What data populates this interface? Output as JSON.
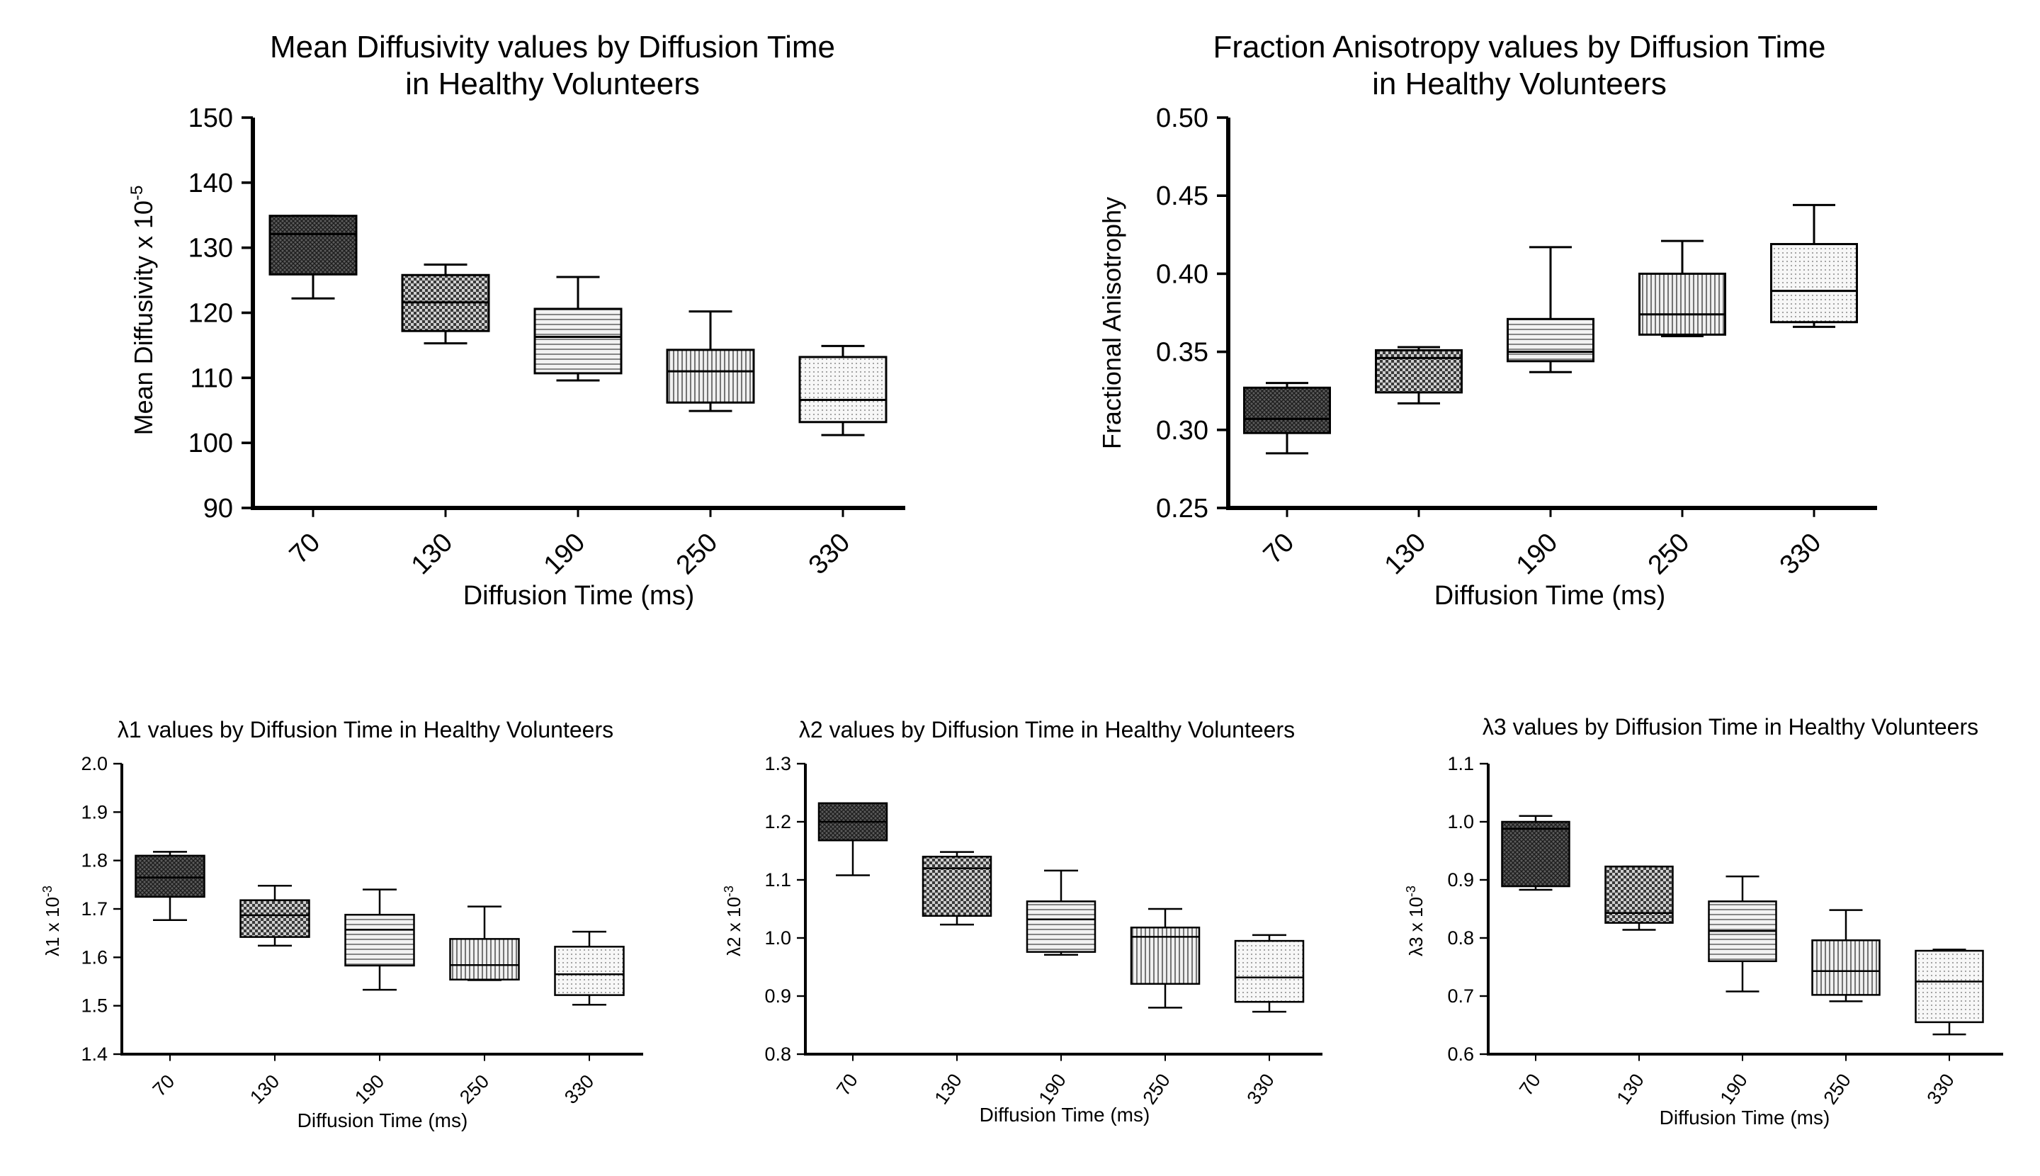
{
  "chart_data": [
    {
      "type": "box",
      "id": "md",
      "title_lines": [
        "Mean Diffusivity values by Diffusion Time",
        "in Healthy Volunteers"
      ],
      "ylabel": "Mean Diffusivity x 10",
      "ylabel_sup": "-5",
      "xlabel": "Diffusion Time (ms)",
      "ylim": [
        90,
        150
      ],
      "yticks": [
        "90",
        "100",
        "110",
        "120",
        "130",
        "140",
        "150"
      ],
      "categories": [
        "70",
        "130",
        "190",
        "250",
        "330"
      ],
      "boxes": [
        {
          "min": 122.2,
          "q1": 125.9,
          "median": 132.1,
          "q3": 134.9,
          "max": 134.9,
          "fill": "dark-cross"
        },
        {
          "min": 115.3,
          "q1": 117.2,
          "median": 121.6,
          "q3": 125.8,
          "max": 127.4,
          "fill": "check"
        },
        {
          "min": 109.6,
          "q1": 110.7,
          "median": 116.3,
          "q3": 120.6,
          "max": 125.5,
          "fill": "hlines"
        },
        {
          "min": 104.9,
          "q1": 106.2,
          "median": 111.0,
          "q3": 114.3,
          "max": 120.2,
          "fill": "vlines"
        },
        {
          "min": 101.2,
          "q1": 103.2,
          "median": 106.6,
          "q3": 113.2,
          "max": 114.9,
          "fill": "dots"
        }
      ]
    },
    {
      "type": "box",
      "id": "fa",
      "title_lines": [
        "Fraction Anisotropy values by Diffusion Time",
        "in Healthy Volunteers"
      ],
      "ylabel": "Fractional Anisotrophy",
      "ylabel_sup": "",
      "xlabel": "Diffusion Time (ms)",
      "ylim": [
        0.25,
        0.5
      ],
      "yticks": [
        "0.25",
        "0.30",
        "0.35",
        "0.40",
        "0.45",
        "0.50"
      ],
      "categories": [
        "70",
        "130",
        "190",
        "250",
        "330"
      ],
      "boxes": [
        {
          "min": 0.285,
          "q1": 0.298,
          "median": 0.307,
          "q3": 0.327,
          "max": 0.33,
          "fill": "dark-cross"
        },
        {
          "min": 0.317,
          "q1": 0.324,
          "median": 0.346,
          "q3": 0.351,
          "max": 0.353,
          "fill": "check"
        },
        {
          "min": 0.337,
          "q1": 0.344,
          "median": 0.35,
          "q3": 0.371,
          "max": 0.417,
          "fill": "hlines"
        },
        {
          "min": 0.36,
          "q1": 0.361,
          "median": 0.374,
          "q3": 0.4,
          "max": 0.421,
          "fill": "vlines"
        },
        {
          "min": 0.366,
          "q1": 0.369,
          "median": 0.389,
          "q3": 0.419,
          "max": 0.444,
          "fill": "dots"
        }
      ]
    },
    {
      "type": "box",
      "id": "l1",
      "title_lines": [
        "λ1 values by Diffusion Time in Healthy Volunteers"
      ],
      "ylabel": "λ1 x 10",
      "ylabel_sup": "-3",
      "xlabel": "Diffusion Time (ms)",
      "ylim": [
        1.4,
        2.0
      ],
      "yticks": [
        "1.4",
        "1.5",
        "1.6",
        "1.7",
        "1.8",
        "1.9",
        "2.0"
      ],
      "categories": [
        "70",
        "130",
        "190",
        "250",
        "330"
      ],
      "boxes": [
        {
          "min": 1.677,
          "q1": 1.725,
          "median": 1.765,
          "q3": 1.81,
          "max": 1.818,
          "fill": "dark-cross"
        },
        {
          "min": 1.624,
          "q1": 1.642,
          "median": 1.687,
          "q3": 1.718,
          "max": 1.748,
          "fill": "check"
        },
        {
          "min": 1.533,
          "q1": 1.583,
          "median": 1.657,
          "q3": 1.688,
          "max": 1.74,
          "fill": "hlines"
        },
        {
          "min": 1.553,
          "q1": 1.554,
          "median": 1.584,
          "q3": 1.638,
          "max": 1.705,
          "fill": "vlines"
        },
        {
          "min": 1.502,
          "q1": 1.522,
          "median": 1.565,
          "q3": 1.622,
          "max": 1.653,
          "fill": "dots"
        }
      ]
    },
    {
      "type": "box",
      "id": "l2",
      "title_lines": [
        "λ2 values by Diffusion Time in Healthy Volunteers"
      ],
      "ylabel": "λ2 x 10",
      "ylabel_sup": "-3",
      "xlabel": "Diffusion Time (ms)",
      "ylim": [
        0.8,
        1.3
      ],
      "yticks": [
        "0.8",
        "0.9",
        "1.0",
        "1.1",
        "1.2",
        "1.3"
      ],
      "categories": [
        "70",
        "130",
        "190",
        "250",
        "330"
      ],
      "boxes": [
        {
          "min": 1.108,
          "q1": 1.168,
          "median": 1.2,
          "q3": 1.232,
          "max": 1.232,
          "fill": "dark-cross"
        },
        {
          "min": 1.023,
          "q1": 1.038,
          "median": 1.12,
          "q3": 1.14,
          "max": 1.148,
          "fill": "check"
        },
        {
          "min": 0.971,
          "q1": 0.976,
          "median": 1.032,
          "q3": 1.063,
          "max": 1.116,
          "fill": "hlines"
        },
        {
          "min": 0.88,
          "q1": 0.921,
          "median": 1.002,
          "q3": 1.018,
          "max": 1.05,
          "fill": "vlines"
        },
        {
          "min": 0.873,
          "q1": 0.89,
          "median": 0.932,
          "q3": 0.995,
          "max": 1.005,
          "fill": "dots"
        }
      ]
    },
    {
      "type": "box",
      "id": "l3",
      "title_lines": [
        "λ3 values by Diffusion Time in Healthy Volunteers"
      ],
      "ylabel": "λ3 x 10",
      "ylabel_sup": "-3",
      "xlabel": "Diffusion Time (ms)",
      "ylim": [
        0.6,
        1.1
      ],
      "yticks": [
        "0.6",
        "0.7",
        "0.8",
        "0.9",
        "1.0",
        "1.1"
      ],
      "categories": [
        "70",
        "130",
        "190",
        "250",
        "330"
      ],
      "boxes": [
        {
          "min": 0.883,
          "q1": 0.889,
          "median": 0.988,
          "q3": 1.0,
          "max": 1.01,
          "fill": "dark-cross"
        },
        {
          "min": 0.814,
          "q1": 0.826,
          "median": 0.843,
          "q3": 0.923,
          "max": 0.923,
          "fill": "check"
        },
        {
          "min": 0.708,
          "q1": 0.76,
          "median": 0.812,
          "q3": 0.863,
          "max": 0.906,
          "fill": "hlines"
        },
        {
          "min": 0.691,
          "q1": 0.702,
          "median": 0.743,
          "q3": 0.796,
          "max": 0.848,
          "fill": "vlines"
        },
        {
          "min": 0.634,
          "q1": 0.655,
          "median": 0.725,
          "q3": 0.778,
          "max": 0.78,
          "fill": "dots"
        }
      ]
    }
  ]
}
